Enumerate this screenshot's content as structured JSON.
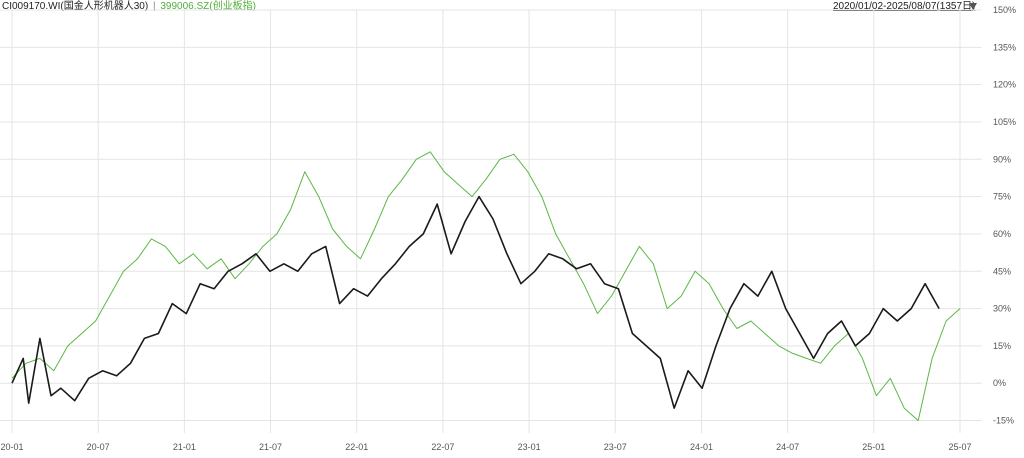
{
  "header": {
    "series1_label": "CI009170.WI(国金人形机器人30)",
    "separator": "|",
    "series2_label": "399006.SZ(创业板指)",
    "date_range": "2020/01/02-2025/08/07(1357日)",
    "dropdown_icon": "triangle-down-icon"
  },
  "colors": {
    "series1": "#1a1a1a",
    "series2": "#5cb845",
    "grid": "#e4e4e4"
  },
  "chart_data": {
    "type": "line",
    "ylim": [
      -20,
      150
    ],
    "yticks": [
      "-15%",
      "0%",
      "15%",
      "30%",
      "45%",
      "60%",
      "75%",
      "90%",
      "105%",
      "120%",
      "135%",
      "150%"
    ],
    "xlim": [
      0,
      68
    ],
    "xticks": [
      "20-01",
      "20-07",
      "21-01",
      "21-07",
      "22-01",
      "22-07",
      "23-01",
      "23-07",
      "24-01",
      "24-07",
      "25-01",
      "25-07"
    ],
    "grid": true,
    "series": [
      {
        "name": "CI009170.WI(国金人形机器人30)",
        "points": [
          [
            0,
            0
          ],
          [
            0.8,
            10
          ],
          [
            1.2,
            -8
          ],
          [
            2,
            18
          ],
          [
            2.8,
            -5
          ],
          [
            3.5,
            -2
          ],
          [
            4.5,
            -7
          ],
          [
            5.5,
            2
          ],
          [
            6.5,
            5
          ],
          [
            7.5,
            3
          ],
          [
            8.5,
            8
          ],
          [
            9.5,
            18
          ],
          [
            10.5,
            20
          ],
          [
            11.5,
            32
          ],
          [
            12.5,
            28
          ],
          [
            13.5,
            40
          ],
          [
            14.5,
            38
          ],
          [
            15.5,
            45
          ],
          [
            16.5,
            48
          ],
          [
            17.5,
            52
          ],
          [
            18.5,
            45
          ],
          [
            19.5,
            48
          ],
          [
            20.5,
            45
          ],
          [
            21.5,
            52
          ],
          [
            22.5,
            55
          ],
          [
            23.5,
            32
          ],
          [
            24.5,
            38
          ],
          [
            25.5,
            35
          ],
          [
            26.5,
            42
          ],
          [
            27.5,
            48
          ],
          [
            28.5,
            55
          ],
          [
            29.5,
            60
          ],
          [
            30.5,
            72
          ],
          [
            31.5,
            52
          ],
          [
            32.5,
            65
          ],
          [
            33.5,
            75
          ],
          [
            34.5,
            66
          ],
          [
            35.5,
            52
          ],
          [
            36.5,
            40
          ],
          [
            37.5,
            45
          ],
          [
            38.5,
            52
          ],
          [
            39.5,
            50
          ],
          [
            40.5,
            46
          ],
          [
            41.5,
            48
          ],
          [
            42.5,
            40
          ],
          [
            43.5,
            38
          ],
          [
            44.5,
            20
          ],
          [
            45.5,
            15
          ],
          [
            46.5,
            10
          ],
          [
            47.5,
            -10
          ],
          [
            48.5,
            5
          ],
          [
            49.5,
            -2
          ],
          [
            50.5,
            15
          ],
          [
            51.5,
            30
          ],
          [
            52.5,
            40
          ],
          [
            53.5,
            35
          ],
          [
            54.5,
            45
          ],
          [
            55.5,
            30
          ],
          [
            56.5,
            20
          ],
          [
            57.5,
            10
          ],
          [
            58.5,
            20
          ],
          [
            59.5,
            25
          ],
          [
            60.5,
            15
          ],
          [
            61.5,
            20
          ],
          [
            62.5,
            30
          ],
          [
            63.5,
            25
          ],
          [
            64.5,
            30
          ],
          [
            65.5,
            40
          ],
          [
            66.5,
            30
          ]
        ]
      },
      {
        "name": "399006.SZ(创业板指)",
        "points": [
          [
            0,
            2
          ],
          [
            1,
            8
          ],
          [
            2,
            10
          ],
          [
            3,
            5
          ],
          [
            4,
            15
          ],
          [
            5,
            20
          ],
          [
            6,
            25
          ],
          [
            7,
            35
          ],
          [
            8,
            45
          ],
          [
            9,
            50
          ],
          [
            10,
            58
          ],
          [
            11,
            55
          ],
          [
            12,
            48
          ],
          [
            13,
            52
          ],
          [
            14,
            46
          ],
          [
            15,
            50
          ],
          [
            16,
            42
          ],
          [
            17,
            48
          ],
          [
            18,
            55
          ],
          [
            19,
            60
          ],
          [
            20,
            70
          ],
          [
            21,
            85
          ],
          [
            22,
            75
          ],
          [
            23,
            62
          ],
          [
            24,
            55
          ],
          [
            25,
            50
          ],
          [
            26,
            62
          ],
          [
            27,
            75
          ],
          [
            28,
            82
          ],
          [
            29,
            90
          ],
          [
            30,
            93
          ],
          [
            31,
            85
          ],
          [
            32,
            80
          ],
          [
            33,
            75
          ],
          [
            34,
            82
          ],
          [
            35,
            90
          ],
          [
            36,
            92
          ],
          [
            37,
            85
          ],
          [
            38,
            75
          ],
          [
            39,
            60
          ],
          [
            40,
            50
          ],
          [
            41,
            40
          ],
          [
            42,
            28
          ],
          [
            43,
            35
          ],
          [
            44,
            45
          ],
          [
            45,
            55
          ],
          [
            46,
            48
          ],
          [
            47,
            30
          ],
          [
            48,
            35
          ],
          [
            49,
            45
          ],
          [
            50,
            40
          ],
          [
            51,
            30
          ],
          [
            52,
            22
          ],
          [
            53,
            25
          ],
          [
            54,
            20
          ],
          [
            55,
            15
          ],
          [
            56,
            12
          ],
          [
            57,
            10
          ],
          [
            58,
            8
          ],
          [
            59,
            15
          ],
          [
            60,
            20
          ],
          [
            61,
            10
          ],
          [
            62,
            -5
          ],
          [
            63,
            2
          ],
          [
            64,
            -10
          ],
          [
            65,
            -15
          ],
          [
            66,
            10
          ],
          [
            67,
            25
          ],
          [
            68,
            30
          ]
        ]
      }
    ]
  }
}
